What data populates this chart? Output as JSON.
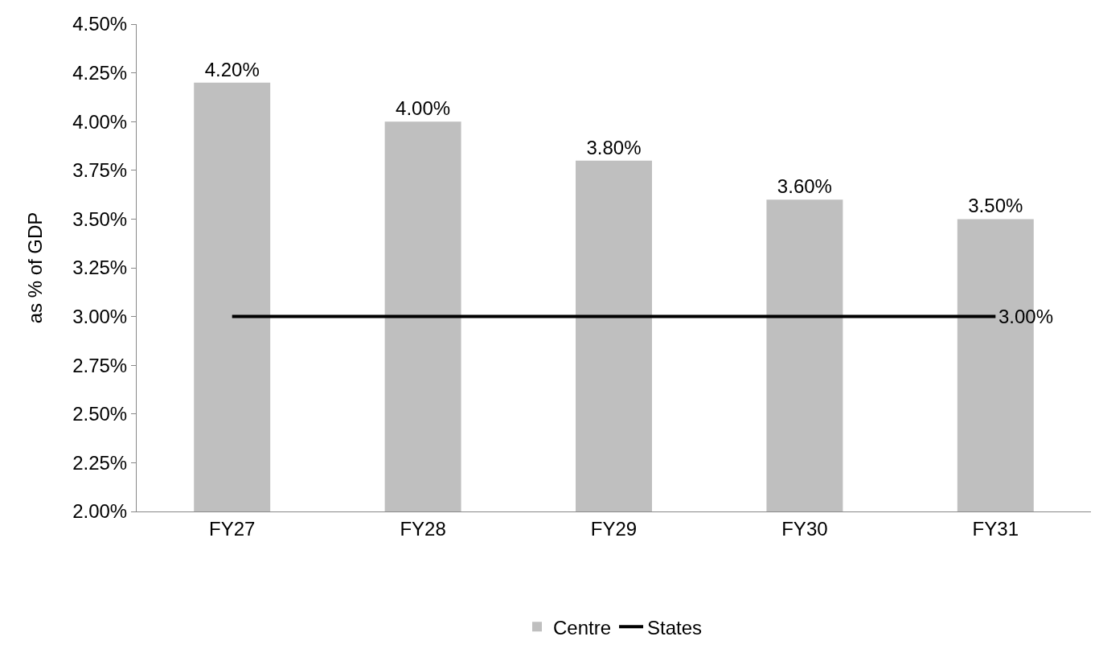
{
  "chart_data": {
    "type": "bar",
    "ylabel": "as % of GDP",
    "categories": [
      "FY27",
      "FY28",
      "FY29",
      "FY30",
      "FY31"
    ],
    "series": [
      {
        "name": "Centre",
        "color": "#bfbfbf",
        "values": [
          4.2,
          4.0,
          3.8,
          3.6,
          3.5
        ],
        "value_labels": [
          "4.20%",
          "4.00%",
          "3.80%",
          "3.60%",
          "3.50%"
        ]
      },
      {
        "name": "States",
        "type": "line",
        "color": "#000000",
        "values": [
          3.0,
          3.0,
          3.0,
          3.0,
          3.0
        ],
        "value_labels": [
          null,
          null,
          null,
          null,
          "3.00%"
        ]
      }
    ],
    "ylim": [
      2.0,
      4.5
    ],
    "yticks": [
      {
        "value": 2.0,
        "label": "2.00%"
      },
      {
        "value": 2.25,
        "label": "2.25%"
      },
      {
        "value": 2.5,
        "label": "2.50%"
      },
      {
        "value": 2.75,
        "label": "2.75%"
      },
      {
        "value": 3.0,
        "label": "3.00%"
      },
      {
        "value": 3.25,
        "label": "3.25%"
      },
      {
        "value": 3.5,
        "label": "3.50%"
      },
      {
        "value": 3.75,
        "label": "3.75%"
      },
      {
        "value": 4.0,
        "label": "4.00%"
      },
      {
        "value": 4.25,
        "label": "4.25%"
      },
      {
        "value": 4.5,
        "label": "4.50%"
      }
    ],
    "grid": false,
    "legend": "bottom",
    "marker": "none",
    "line_style": "solid"
  }
}
